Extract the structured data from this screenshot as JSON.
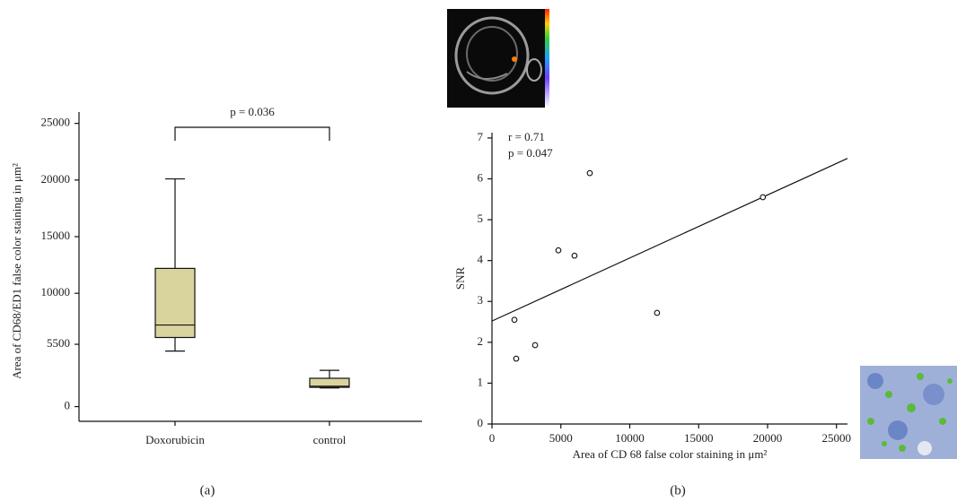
{
  "chart_data": [
    {
      "type": "box",
      "ylabel": "Area of CD68/ED1 false color staining in μm²",
      "categories": [
        "Doxorubicin",
        "control"
      ],
      "boxes": [
        {
          "min": 4900,
          "q1": 6100,
          "median": 7200,
          "q3": 12200,
          "max": 20100
        },
        {
          "min": 1650,
          "q1": 1700,
          "median": 1800,
          "q3": 2500,
          "max": 3200
        }
      ],
      "color": "#d9d49e",
      "ylim": [
        -1300,
        26000
      ],
      "yticks": [
        0,
        5500,
        10000,
        15000,
        20000,
        25000
      ],
      "annotation": "p = 0.036",
      "panel_label": "(a)"
    },
    {
      "type": "scatter",
      "xlabel": "Area of CD 68 false color staining in μm²",
      "ylabel": "SNR",
      "x": [
        1630,
        1760,
        3130,
        4820,
        5990,
        7100,
        11980,
        19660
      ],
      "values": [
        2.55,
        1.6,
        1.93,
        4.25,
        4.12,
        6.14,
        2.72,
        5.55
      ],
      "fit_line": {
        "x": [
          0,
          25800
        ],
        "values": [
          2.52,
          6.5
        ]
      },
      "xlim": [
        0,
        25800
      ],
      "ylim": [
        0,
        7.13
      ],
      "xticks": [
        0,
        5000,
        10000,
        15000,
        20000,
        25000
      ],
      "yticks": [
        0,
        1,
        2,
        3,
        4,
        5,
        6,
        7
      ],
      "annotations": [
        "r = 0.71",
        "p = 0.047"
      ],
      "panel_label": "(b)"
    }
  ]
}
